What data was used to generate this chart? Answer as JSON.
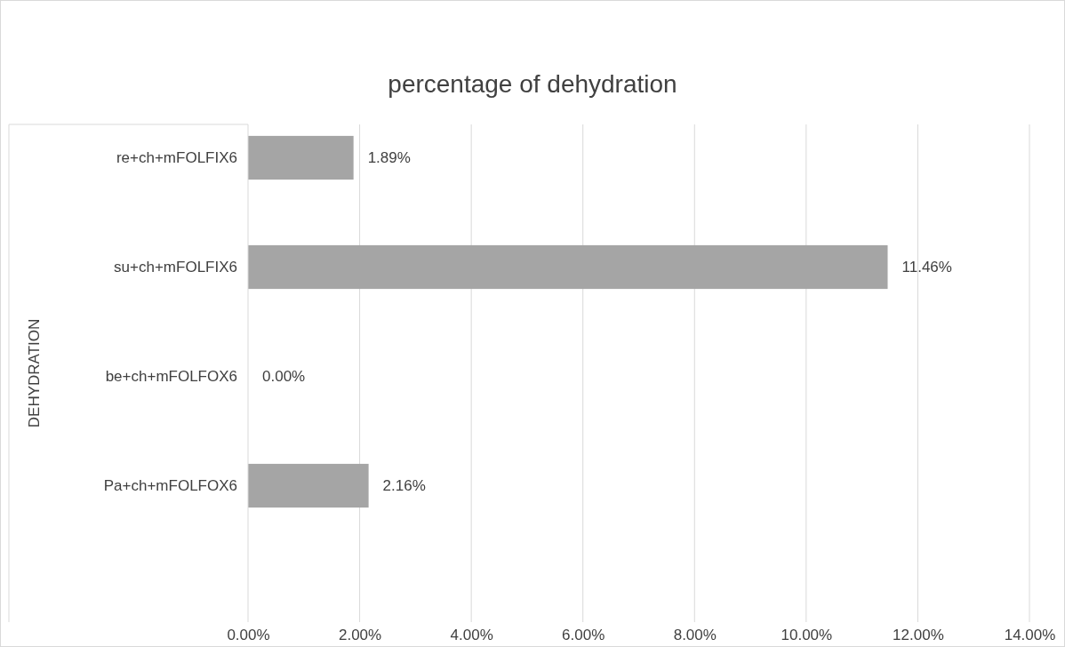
{
  "chart_data": {
    "type": "bar",
    "orientation": "horizontal",
    "title": "percentage of dehydration",
    "ylabel": "DEHYDRATION",
    "categories": [
      "re+ch+mFOLFIX6",
      "su+ch+mFOLFIX6",
      "be+ch+mFOLFOX6",
      "Pa+ch+mFOLFOX6"
    ],
    "values": [
      1.89,
      11.46,
      0,
      2.16
    ],
    "color": "#a5a5a5",
    "xlim": [
      0,
      14
    ],
    "xticks": [
      {
        "value": 0,
        "label": "0.00%"
      },
      {
        "value": 2,
        "label": "2.00%"
      },
      {
        "value": 4,
        "label": "4.00%"
      },
      {
        "value": 6,
        "label": "6.00%"
      },
      {
        "value": 8,
        "label": "8.00%"
      },
      {
        "value": 10,
        "label": "10.00%"
      },
      {
        "value": 12,
        "label": "12.00%"
      },
      {
        "value": 14,
        "label": "14.00%"
      }
    ],
    "grid": "x",
    "value_labels": [
      "1.89%",
      "11.46%",
      "0.00%",
      "2.16%"
    ]
  }
}
